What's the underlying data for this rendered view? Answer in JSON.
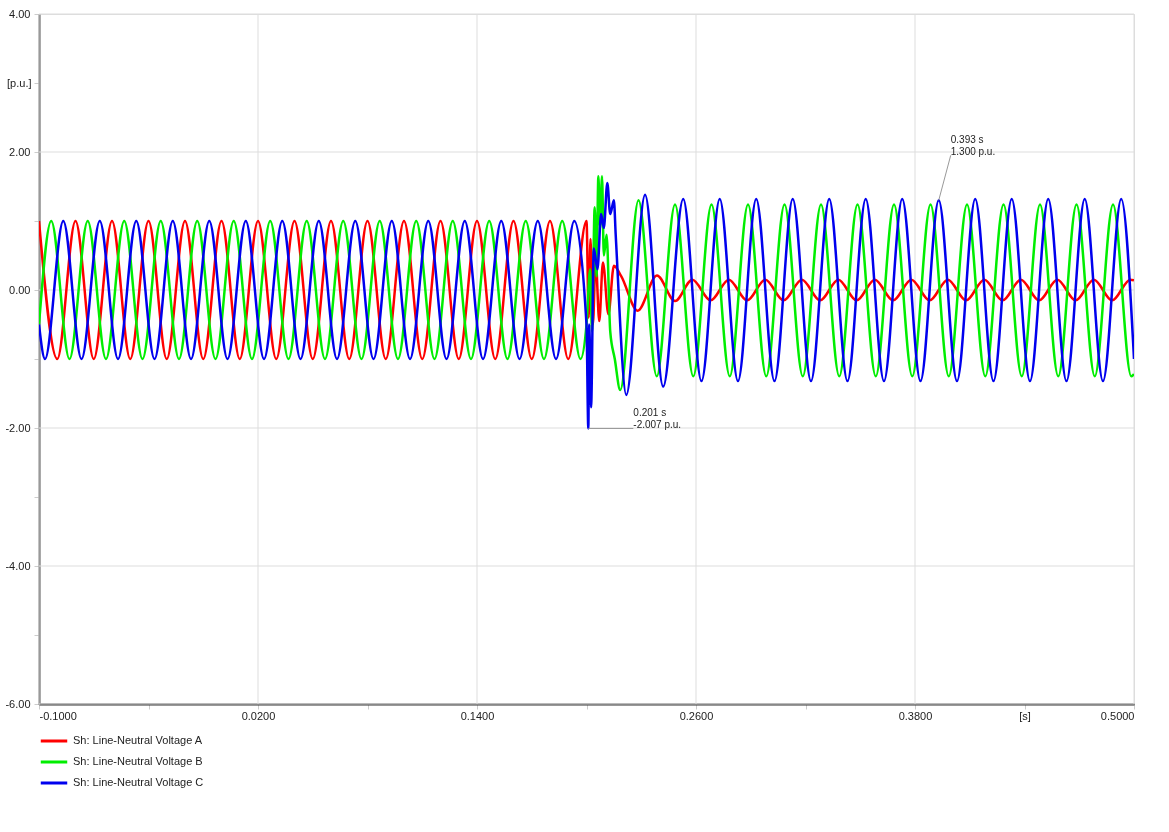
{
  "chart_data": {
    "type": "line",
    "xlabel": "[s]",
    "ylabel": "[p.u.]",
    "xlim": [
      -0.1,
      0.5
    ],
    "ylim": [
      -6,
      4
    ],
    "xticks": [
      {
        "value": -0.1,
        "label": "-0.1000"
      },
      {
        "value": -0.04,
        "label": null
      },
      {
        "value": 0.02,
        "label": "0.0200"
      },
      {
        "value": 0.08,
        "label": null
      },
      {
        "value": 0.14,
        "label": "0.1400"
      },
      {
        "value": 0.2,
        "label": null
      },
      {
        "value": 0.26,
        "label": "0.2600"
      },
      {
        "value": 0.32,
        "label": null
      },
      {
        "value": 0.38,
        "label": "0.3800"
      },
      {
        "value": 0.44,
        "label": null
      },
      {
        "value": 0.5,
        "label": "0.5000"
      }
    ],
    "yticks": [
      {
        "value": -6,
        "label": "-6.00"
      },
      {
        "value": -5,
        "label": null
      },
      {
        "value": -4,
        "label": "-4.00"
      },
      {
        "value": -3,
        "label": null
      },
      {
        "value": -2,
        "label": "-2.00"
      },
      {
        "value": -1,
        "label": null
      },
      {
        "value": 0,
        "label": "0.00"
      },
      {
        "value": 1,
        "label": null
      },
      {
        "value": 2,
        "label": "2.00"
      },
      {
        "value": 3,
        "label": null
      },
      {
        "value": 4,
        "label": "4.00"
      }
    ],
    "grid": true,
    "legend": "bottom",
    "line_style": "solid",
    "series": [
      {
        "name": "Sh: Line-Neutral Voltage A",
        "color": "#ff0000",
        "x": [
          -0.1,
          -0.09,
          -0.08,
          -0.07,
          -0.06,
          -0.05,
          -0.04,
          -0.03,
          -0.02,
          -0.01,
          0,
          0.01,
          0.02,
          0.03,
          0.04,
          0.05,
          0.06,
          0.07,
          0.08,
          0.09,
          0.1,
          0.11,
          0.12,
          0.13,
          0.14,
          0.15,
          0.16,
          0.17,
          0.18,
          0.19,
          0.2,
          0.2012,
          0.2022,
          0.2035,
          0.205,
          0.207,
          0.209,
          0.212,
          0.215,
          0.219,
          0.228,
          0.2386,
          0.2485,
          0.258,
          0.268,
          0.278,
          0.288,
          0.298,
          0.308,
          0.318,
          0.328,
          0.338,
          0.348,
          0.358,
          0.368,
          0.378,
          0.388,
          0.398,
          0.408,
          0.418,
          0.428,
          0.438,
          0.448,
          0.458,
          0.468,
          0.478,
          0.488,
          0.498,
          0.5
        ],
        "values": [
          1,
          -1,
          1,
          -1,
          1,
          -1,
          1,
          -1,
          1,
          -1,
          1,
          -1,
          1,
          -1,
          1,
          -1,
          1,
          -1,
          1,
          -1,
          1,
          -1,
          1,
          -1,
          1,
          -1,
          1,
          -1,
          1,
          -1,
          1,
          -0.4,
          0.74,
          -0.5,
          0.45,
          -0.45,
          0.4,
          -0.35,
          0.35,
          0.2,
          -0.3,
          0.21,
          -0.16,
          0.15,
          -0.15,
          0.15,
          -0.15,
          0.15,
          -0.15,
          0.15,
          -0.15,
          0.15,
          -0.15,
          0.15,
          -0.15,
          0.15,
          -0.15,
          0.15,
          -0.15,
          0.15,
          -0.15,
          0.15,
          -0.15,
          0.15,
          -0.15,
          0.15,
          -0.15,
          0.15,
          0.14
        ]
      },
      {
        "name": "Sh: Line-Neutral Voltage B",
        "color": "#00ee00",
        "x": [
          -0.1,
          -0.0933,
          -0.0833,
          -0.0733,
          -0.0633,
          -0.0533,
          -0.0433,
          -0.0333,
          -0.0233,
          -0.0133,
          -0.0033,
          0.0067,
          0.0167,
          0.0267,
          0.0367,
          0.0467,
          0.0567,
          0.0667,
          0.0767,
          0.0867,
          0.0967,
          0.1067,
          0.1167,
          0.1267,
          0.1367,
          0.1467,
          0.1567,
          0.1667,
          0.1767,
          0.1867,
          0.1967,
          0.2,
          0.202,
          0.203,
          0.2045,
          0.2055,
          0.2065,
          0.2075,
          0.2085,
          0.2095,
          0.211,
          0.213,
          0.2155,
          0.2185,
          0.2285,
          0.2385,
          0.2485,
          0.2585,
          0.2685,
          0.2785,
          0.2885,
          0.2985,
          0.3085,
          0.3185,
          0.3285,
          0.3385,
          0.3485,
          0.3585,
          0.3685,
          0.3785,
          0.3885,
          0.3985,
          0.4085,
          0.4185,
          0.4285,
          0.4385,
          0.4485,
          0.4585,
          0.4685,
          0.4785,
          0.4885,
          0.4985,
          0.5
        ],
        "values": [
          -0.5,
          1,
          -1,
          1,
          -1,
          1,
          -1,
          1,
          -1,
          1,
          -1,
          1,
          -1,
          1,
          -1,
          1,
          -1,
          1,
          -1,
          1,
          -1,
          1,
          -1,
          1,
          -1,
          1,
          -1,
          1,
          -1,
          1,
          -1,
          -0.5,
          0.3,
          -0.6,
          1.2,
          0.2,
          1.65,
          0.9,
          1.65,
          0.5,
          0.8,
          -0.6,
          -1.0,
          -1.45,
          1.3,
          -1.25,
          1.24,
          -1.25,
          1.24,
          -1.25,
          1.24,
          -1.25,
          1.24,
          -1.25,
          1.24,
          -1.25,
          1.24,
          -1.25,
          1.24,
          -1.25,
          1.24,
          -1.25,
          1.24,
          -1.25,
          1.24,
          -1.25,
          1.24,
          -1.25,
          1.24,
          -1.25,
          1.24,
          -1.25,
          -1.22
        ]
      },
      {
        "name": "Sh: Line-Neutral Voltage C",
        "color": "#0000ee",
        "x": [
          -0.1,
          -0.0967,
          -0.0867,
          -0.0767,
          -0.0667,
          -0.0567,
          -0.0467,
          -0.0367,
          -0.0267,
          -0.0167,
          -0.0067,
          0.0033,
          0.0133,
          0.0233,
          0.0333,
          0.0433,
          0.0533,
          0.0633,
          0.0733,
          0.0833,
          0.0933,
          0.1033,
          0.1133,
          0.1233,
          0.1333,
          0.1433,
          0.1533,
          0.1633,
          0.1733,
          0.1833,
          0.1933,
          0.2,
          0.201,
          0.2015,
          0.2025,
          0.204,
          0.206,
          0.208,
          0.2095,
          0.2114,
          0.213,
          0.215,
          0.216,
          0.2218,
          0.2321,
          0.242,
          0.253,
          0.263,
          0.273,
          0.283,
          0.293,
          0.303,
          0.313,
          0.323,
          0.333,
          0.343,
          0.353,
          0.363,
          0.373,
          0.383,
          0.393,
          0.403,
          0.413,
          0.423,
          0.433,
          0.443,
          0.453,
          0.463,
          0.473,
          0.483,
          0.493,
          0.5
        ],
        "values": [
          -0.5,
          -1,
          1,
          -1,
          1,
          -1,
          1,
          -1,
          1,
          -1,
          1,
          -1,
          1,
          -1,
          1,
          -1,
          1,
          -1,
          1,
          -1,
          1,
          -1,
          1,
          -1,
          1,
          -1,
          1,
          -1,
          1,
          -1,
          1,
          -0.5,
          -2.007,
          -0.5,
          -1.7,
          0.6,
          0.3,
          1.1,
          0.9,
          1.55,
          1.1,
          1.3,
          0.8,
          -1.52,
          1.38,
          -1.4,
          1.32,
          -1.32,
          1.32,
          -1.32,
          1.32,
          -1.32,
          1.32,
          -1.32,
          1.32,
          -1.32,
          1.32,
          -1.32,
          1.32,
          -1.32,
          1.3,
          -1.32,
          1.32,
          -1.32,
          1.32,
          -1.32,
          1.32,
          -1.32,
          1.32,
          -1.32,
          1.32,
          -1.0
        ]
      }
    ],
    "annotations": [
      {
        "text": "0.201 s\n-2.007 p.u.",
        "x": 0.201,
        "y": -2.007
      },
      {
        "text": "0.393 s\n1.300 p.u.",
        "x": 0.393,
        "y": 1.3
      }
    ]
  }
}
